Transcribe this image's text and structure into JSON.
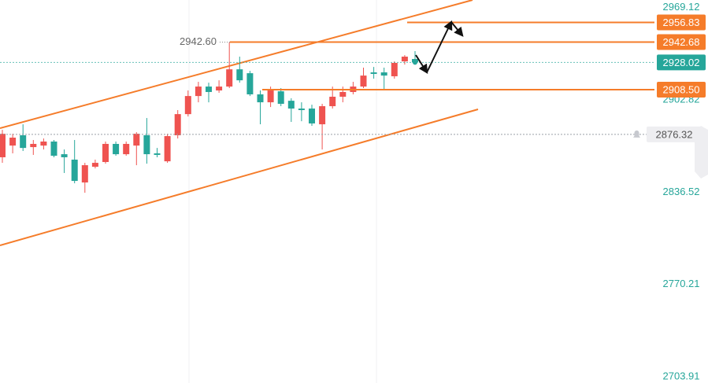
{
  "chart_data": {
    "type": "candlestick",
    "open": [
      2859.9,
      2868.3,
      2875.7,
      2867.2,
      2868.3,
      2871.2,
      2862.1,
      2858.2,
      2841.8,
      2853.1,
      2856.5,
      2869.5,
      2862.1,
      2868.3,
      2875.7,
      2862.7,
      2857.0,
      2875.7,
      2890.9,
      2903.9,
      2910.7,
      2907.9,
      2910.7,
      2923.1,
      2920.3,
      2905.1,
      2899.4,
      2907.3,
      2900.5,
      2894.9,
      2894.9,
      2883.6,
      2896.6,
      2903.4,
      2906.8,
      2910.7,
      2920.9,
      2920.9,
      2918.1,
      2928.8,
      2930.5
    ],
    "high": [
      2879.6,
      2876.8,
      2883.6,
      2872.3,
      2873.4,
      2872.3,
      2865.5,
      2872.3,
      2855.9,
      2858.2,
      2871.2,
      2871.2,
      2871.2,
      2877.9,
      2888.1,
      2866.6,
      2876.8,
      2893.8,
      2907.9,
      2914.1,
      2913.5,
      2915.2,
      2942.6,
      2932.2,
      2922.0,
      2907.9,
      2910.7,
      2909.6,
      2902.3,
      2899.4,
      2897.7,
      2898.3,
      2910.7,
      2910.7,
      2914.1,
      2924.3,
      2924.8,
      2924.3,
      2928.8,
      2933.3,
      2936.2
    ],
    "low": [
      2855.9,
      2862.7,
      2864.4,
      2861.6,
      2865.5,
      2859.9,
      2848.6,
      2841.2,
      2834.4,
      2851.9,
      2855.3,
      2861.0,
      2861.0,
      2854.2,
      2855.3,
      2859.9,
      2855.9,
      2873.4,
      2889.2,
      2899.4,
      2899.4,
      2906.2,
      2909.6,
      2913.5,
      2903.9,
      2883.6,
      2896.0,
      2896.6,
      2885.3,
      2885.8,
      2882.5,
      2865.5,
      2894.9,
      2899.4,
      2905.1,
      2909.6,
      2916.4,
      2909.0,
      2916.4,
      2926.5,
      2927.7
    ],
    "close": [
      2876.8,
      2874.0,
      2866.6,
      2869.5,
      2871.2,
      2861.0,
      2859.9,
      2842.9,
      2854.2,
      2855.9,
      2869.5,
      2862.1,
      2869.5,
      2876.8,
      2862.1,
      2861.6,
      2875.1,
      2890.9,
      2903.9,
      2910.7,
      2906.8,
      2910.7,
      2923.1,
      2915.2,
      2905.1,
      2899.4,
      2908.5,
      2898.3,
      2894.9,
      2893.8,
      2884.2,
      2896.6,
      2903.4,
      2906.8,
      2910.7,
      2918.6,
      2919.8,
      2918.6,
      2927.7,
      2932.2,
      2928.02
    ],
    "up_color": "#ef5350",
    "down_color": "#26a69a",
    "ylim": [
      2697.7,
      2972.9
    ],
    "yticks": [
      2969.12,
      2902.82,
      2836.52,
      2770.21,
      2703.91
    ],
    "grid": true,
    "price_lines": [
      {
        "value": 2956.83,
        "color": "#f57c2a"
      },
      {
        "value": 2942.68,
        "color": "#f57c2a"
      },
      {
        "value": 2908.5,
        "label": "2908.50",
        "color": "#f57c2a"
      }
    ],
    "current_price": {
      "value": 2928.02,
      "color": "#26a69a"
    },
    "crosshair_price": 2876.32,
    "high_label": {
      "value": 2942.6,
      "label": "2942.60"
    }
  }
}
